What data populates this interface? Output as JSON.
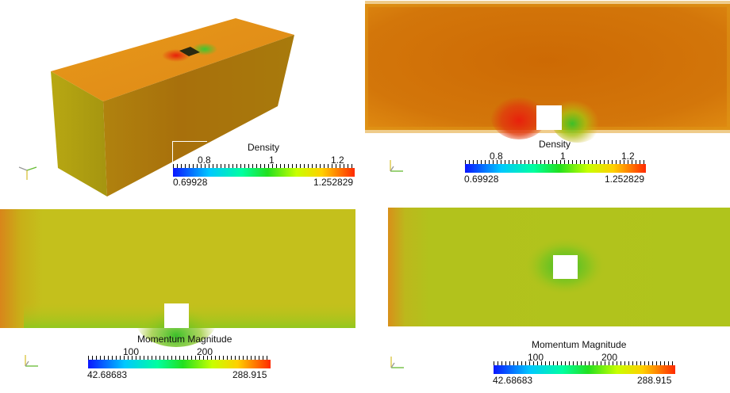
{
  "views": [
    {
      "id": "perspective-3d",
      "colorbar": {
        "title": "Density",
        "min_label": "0.69928",
        "max_label": "1.252829",
        "ticks": [
          {
            "label": "0.8"
          },
          {
            "label": "1"
          },
          {
            "label": "1.2"
          }
        ]
      }
    },
    {
      "id": "top-right-slice",
      "colorbar": {
        "title": "Density",
        "min_label": "0.69928",
        "max_label": "1.252829",
        "ticks": [
          {
            "label": "0.8"
          },
          {
            "label": "1"
          },
          {
            "label": "1.2"
          }
        ]
      }
    },
    {
      "id": "bottom-left-slice",
      "colorbar": {
        "title": "Momentum Magnitude",
        "min_label": "42.68683",
        "max_label": "288.915",
        "ticks": [
          {
            "label": "100"
          },
          {
            "label": "200"
          }
        ]
      }
    },
    {
      "id": "bottom-right-slice",
      "colorbar": {
        "title": "Momentum Magnitude",
        "min_label": "42.68683",
        "max_label": "288.915",
        "ticks": [
          {
            "label": "100"
          },
          {
            "label": "200"
          }
        ]
      }
    }
  ],
  "colors": {
    "background": "#ffffff",
    "density_field": "#d4760a",
    "momentum_field": "#c8c81a",
    "obstacle": "#ffffff"
  },
  "icons": [
    "orientation-axes-icon"
  ]
}
